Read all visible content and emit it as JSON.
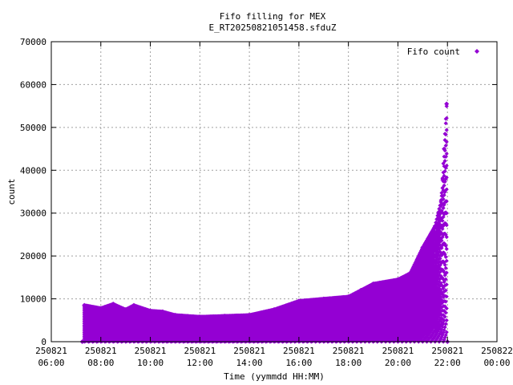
{
  "chart_data": {
    "type": "scatter",
    "title_lines": [
      "Fifo filling for MEX",
      "E_RT20250821051458.sfduZ"
    ],
    "xlabel": "Time (yymmdd HH:MM)",
    "ylabel": "count",
    "x_range": [
      "2025-08-21 06:00",
      "2025-08-22 00:00"
    ],
    "ylim": [
      0,
      70000
    ],
    "y_ticks": [
      0,
      10000,
      20000,
      30000,
      40000,
      50000,
      60000,
      70000
    ],
    "x_ticks": [
      {
        "date": "250821",
        "time": "06:00"
      },
      {
        "date": "250821",
        "time": "08:00"
      },
      {
        "date": "250821",
        "time": "10:00"
      },
      {
        "date": "250821",
        "time": "12:00"
      },
      {
        "date": "250821",
        "time": "14:00"
      },
      {
        "date": "250821",
        "time": "16:00"
      },
      {
        "date": "250821",
        "time": "18:00"
      },
      {
        "date": "250821",
        "time": "20:00"
      },
      {
        "date": "250821",
        "time": "22:00"
      },
      {
        "date": "250822",
        "time": "00:00"
      }
    ],
    "grid": true,
    "legend_position": "top-right",
    "series": [
      {
        "name": "Fifo count",
        "color": "#9400d3",
        "marker": "diamond",
        "envelope_max": [
          [
            "07:15",
            0
          ],
          [
            "07:20",
            8500
          ],
          [
            "08:00",
            7800
          ],
          [
            "08:30",
            8800
          ],
          [
            "09:00",
            7500
          ],
          [
            "09:20",
            8500
          ],
          [
            "10:00",
            7200
          ],
          [
            "10:30",
            7000
          ],
          [
            "11:00",
            6200
          ],
          [
            "12:00",
            5800
          ],
          [
            "13:00",
            6000
          ],
          [
            "14:00",
            6200
          ],
          [
            "15:00",
            7500
          ],
          [
            "16:00",
            9500
          ],
          [
            "17:00",
            10000
          ],
          [
            "18:00",
            10500
          ],
          [
            "18:30",
            12000
          ],
          [
            "19:00",
            13500
          ],
          [
            "20:00",
            14500
          ],
          [
            "20:30",
            16000
          ],
          [
            "21:00",
            22000
          ],
          [
            "21:30",
            27000
          ],
          [
            "21:45",
            33000
          ],
          [
            "21:52",
            45000
          ],
          [
            "21:58",
            55500
          ],
          [
            "22:00",
            0
          ]
        ]
      }
    ]
  }
}
